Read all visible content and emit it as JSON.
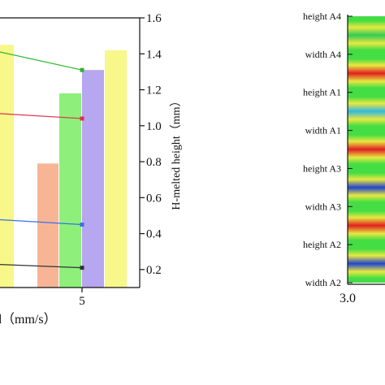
{
  "chart_data": [
    {
      "type": "bar",
      "x_tick_labels": [
        "5"
      ],
      "xlabel_fragment": "d（mm/s）",
      "ylabel_right": "H-melted height（mm）",
      "ylim_right": [
        0.1,
        1.6
      ],
      "yticks_right": [
        "0.2",
        "0.4",
        "0.6",
        "0.8",
        "1.0",
        "1.2",
        "1.4",
        "1.6"
      ],
      "bars": [
        {
          "group": "left",
          "value": 1.45,
          "color": "#f7f78a"
        },
        {
          "group": "5",
          "value": 0.79,
          "color": "#f8b596"
        },
        {
          "group": "5",
          "value": 1.18,
          "color": "#8ef07a"
        },
        {
          "group": "5",
          "value": 1.31,
          "color": "#b7a6f0"
        },
        {
          "group": "5",
          "value": 1.42,
          "color": "#f7f78a"
        }
      ],
      "series": [
        {
          "color": "#2db52d",
          "points": [
            [
              0.0,
              1.42
            ],
            [
              1.0,
              1.31
            ]
          ]
        },
        {
          "color": "#e0304a",
          "points": [
            [
              0.0,
              1.07
            ],
            [
              1.0,
              1.04
            ]
          ]
        },
        {
          "color": "#3a6fe8",
          "points": [
            [
              0.0,
              0.48
            ],
            [
              1.0,
              0.45
            ]
          ]
        },
        {
          "color": "#333333",
          "points": [
            [
              0.0,
              0.23
            ],
            [
              1.0,
              0.21
            ]
          ]
        }
      ]
    },
    {
      "type": "heatmap",
      "row_labels": [
        "height A4",
        "width A4",
        "height A1",
        "width A1",
        "height A3",
        "width A3",
        "height A2",
        "width A2"
      ],
      "x_tick_labels": [
        "3.0"
      ],
      "band_colors": [
        "#33cc55",
        "#e02020",
        "#33b8e0",
        "#e02020",
        "#2244cc",
        "#e02020",
        "#2244cc"
      ]
    }
  ]
}
